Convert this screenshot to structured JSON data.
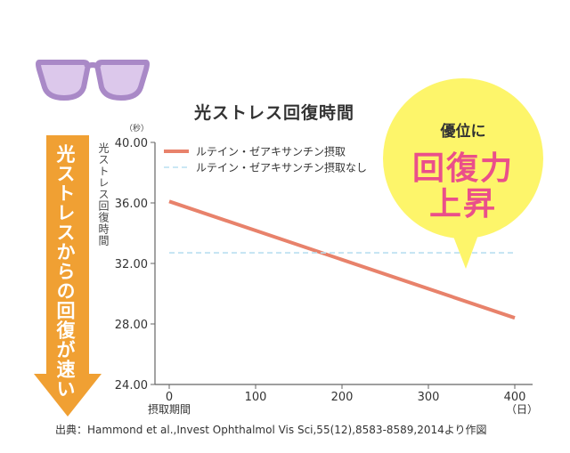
{
  "chart_data": {
    "type": "line",
    "title": "光ストレス回復時間",
    "ylabel": "光ストレス回復時間",
    "y_unit": "（秒）",
    "xlabel": "摂取期間",
    "x_unit": "（日）",
    "xlim": [
      0,
      400
    ],
    "ylim": [
      24,
      40
    ],
    "x_ticks": [
      0,
      100,
      200,
      300,
      400
    ],
    "y_ticks": [
      "24.00",
      "28.00",
      "32.00",
      "36.00",
      "40.00"
    ],
    "legend_position": "top-left",
    "series": [
      {
        "name": "ルテイン・ゼアキサンチン摂取",
        "color": "#e8826b",
        "style": "solid",
        "x": [
          0,
          400
        ],
        "y": [
          36.1,
          28.4
        ]
      },
      {
        "name": "ルテイン・ゼアキサンチン摂取なし",
        "color": "#b9dff0",
        "style": "dashed",
        "x": [
          0,
          400
        ],
        "y": [
          32.7,
          32.7
        ]
      }
    ]
  },
  "callout": {
    "line1": "優位に",
    "line2": "回復力",
    "line3": "上昇",
    "bubble_color": "#fdf56a",
    "text_color": "#ea4f8a"
  },
  "arrow": {
    "text": "光ストレスからの回復が速い",
    "color": "#f0a033"
  },
  "glasses": {
    "icon": "glasses-icon",
    "frame_color": "#a989c7",
    "lens_color": "#dcc8eb"
  },
  "source": "出典：Hammond et al.,Invest Ophthalmol Vis Sci,55(12),8583-8589,2014より作図"
}
